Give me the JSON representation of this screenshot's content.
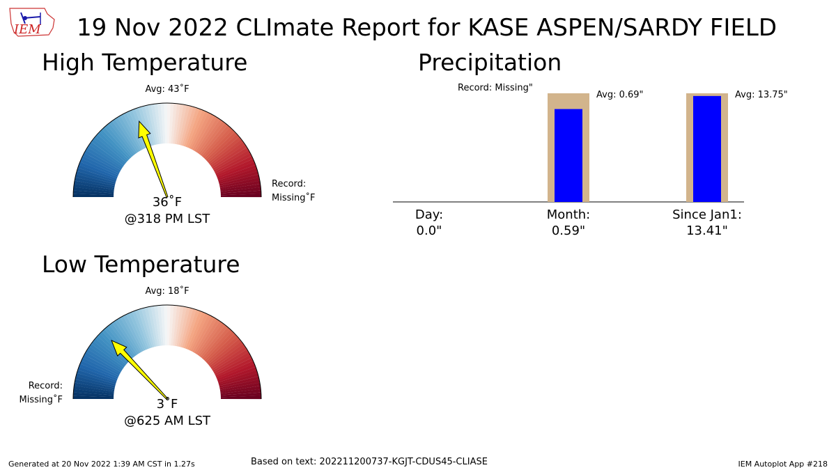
{
  "header": {
    "title": "19 Nov 2022 CLImate Report for KASE ASPEN/SARDY FIELD",
    "logo_text": "IEM"
  },
  "high_temperature": {
    "panel_title": "High Temperature",
    "avg_label": "Avg: 43˚F",
    "record_line1": "Record:",
    "record_line2": "Missing˚F",
    "value_label": "36˚F",
    "time_label": "@318 PM LST",
    "needle_value": 36,
    "scale_min": 12,
    "scale_max": 74
  },
  "low_temperature": {
    "panel_title": "Low Temperature",
    "avg_label": "Avg: 18˚F",
    "record_line1": "Record:",
    "record_line2": "Missing˚F",
    "value_label": "3˚F",
    "time_label": "@625 AM LST",
    "needle_value": 3,
    "scale_min": -13,
    "scale_max": 49
  },
  "chart_data": {
    "type": "bar",
    "title": "Precipitation",
    "record_label": "Record: Missing\"",
    "categories": [
      {
        "name": "Day:",
        "value_text": "0.0\"",
        "observed": 0.0,
        "average": null,
        "avg_label": ""
      },
      {
        "name": "Month:",
        "value_text": "0.59\"",
        "observed": 0.59,
        "average": 0.69,
        "avg_label": "Avg: 0.69\""
      },
      {
        "name": "Since Jan1:",
        "value_text": "13.41\"",
        "observed": 13.41,
        "average": 13.75,
        "avg_label": "Avg: 13.75\""
      }
    ],
    "colors": {
      "observed": "#0000ff",
      "average": "#d2b48c"
    }
  },
  "footer": {
    "generated": "Generated at 20 Nov 2022 1:39 AM CST in 1.27s",
    "based_on": "Based on text: 202211200737-KGJT-CDUS45-CLIASE",
    "app": "IEM Autoplot App #218"
  },
  "colors": {
    "needle_fill": "#ffff00",
    "gauge_cold": "#053061",
    "gauge_mid": "#f7f7f7",
    "gauge_hot": "#67001f"
  }
}
